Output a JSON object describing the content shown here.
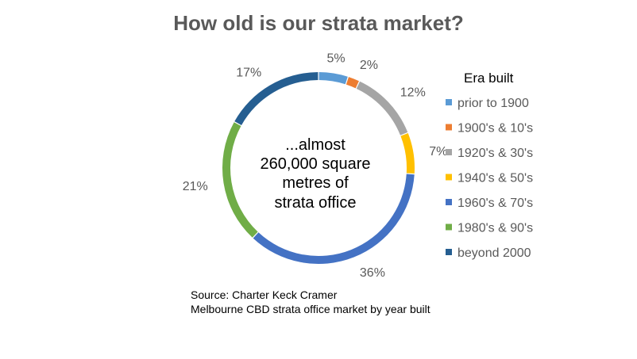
{
  "chart_data": {
    "type": "pie",
    "variant": "doughnut",
    "title": "How old is our strata market?",
    "center_text": [
      "...almost",
      "260,000 square",
      "metres of",
      "strata office"
    ],
    "legend_title": "Era built",
    "legend_position": "right",
    "categories": [
      "prior to 1900",
      "1900's & 10's",
      "1920's & 30's",
      "1940's & 50's",
      "1960's & 70's",
      "1980's & 90's",
      "beyond 2000"
    ],
    "values": [
      5,
      2,
      12,
      7,
      36,
      21,
      17
    ],
    "labels": [
      "5%",
      "2%",
      "12%",
      "7%",
      "36%",
      "21%",
      "17%"
    ],
    "colors": [
      "#5B9BD5",
      "#ED7D31",
      "#A5A5A5",
      "#FFC000",
      "#4472C4",
      "#70AD47",
      "#255E91"
    ]
  },
  "source": {
    "line1": "Source: Charter Keck Cramer",
    "line2": "Melbourne CBD strata office market by year built"
  }
}
